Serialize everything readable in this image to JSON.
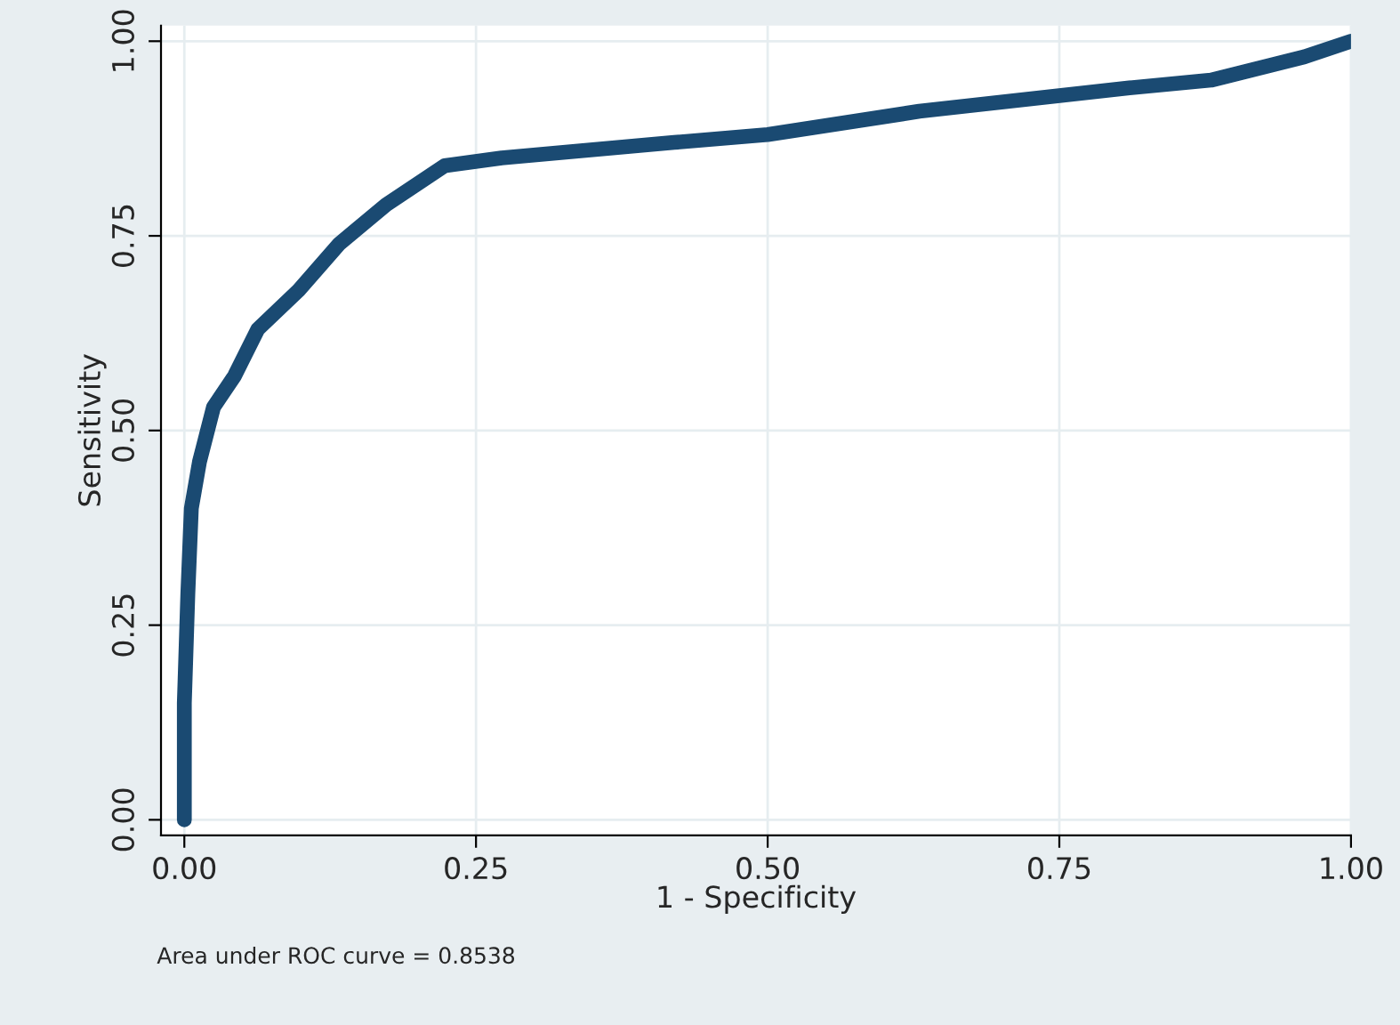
{
  "chart_data": {
    "type": "line",
    "xlabel": "1 - Specificity",
    "ylabel": "Sensitivity",
    "x": [
      0,
      0,
      0.003,
      0.006,
      0.013,
      0.025,
      0.043,
      0.063,
      0.098,
      0.133,
      0.173,
      0.223,
      0.272,
      0.42,
      0.5,
      0.63,
      0.75,
      0.81,
      0.88,
      0.96,
      1.0
    ],
    "series": [
      {
        "color": "#1a4a72",
        "values": [
          0,
          0.15,
          0.29,
          0.4,
          0.46,
          0.53,
          0.57,
          0.63,
          0.68,
          0.74,
          0.79,
          0.84,
          0.85,
          0.87,
          0.88,
          0.91,
          0.93,
          0.94,
          0.95,
          0.98,
          1.0
        ]
      }
    ],
    "xlim": [
      -0.02,
      1.0
    ],
    "ylim": [
      -0.02,
      1.02
    ],
    "xticks": [
      {
        "value": 0,
        "label": "0.00"
      },
      {
        "value": 0.25,
        "label": "0.25"
      },
      {
        "value": 0.5,
        "label": "0.50"
      },
      {
        "value": 0.75,
        "label": "0.75"
      },
      {
        "value": 1,
        "label": "1.00"
      }
    ],
    "yticks": [
      {
        "value": 0,
        "label": "0.00"
      },
      {
        "value": 0.25,
        "label": "0.25"
      },
      {
        "value": 0.5,
        "label": "0.50"
      },
      {
        "value": 0.75,
        "label": "0.75"
      },
      {
        "value": 1,
        "label": "1.00"
      }
    ],
    "grid": true,
    "legend": false,
    "marker": "none",
    "line_style": "solid",
    "annotations": [
      "Area under ROC curve = 0.8538"
    ]
  }
}
